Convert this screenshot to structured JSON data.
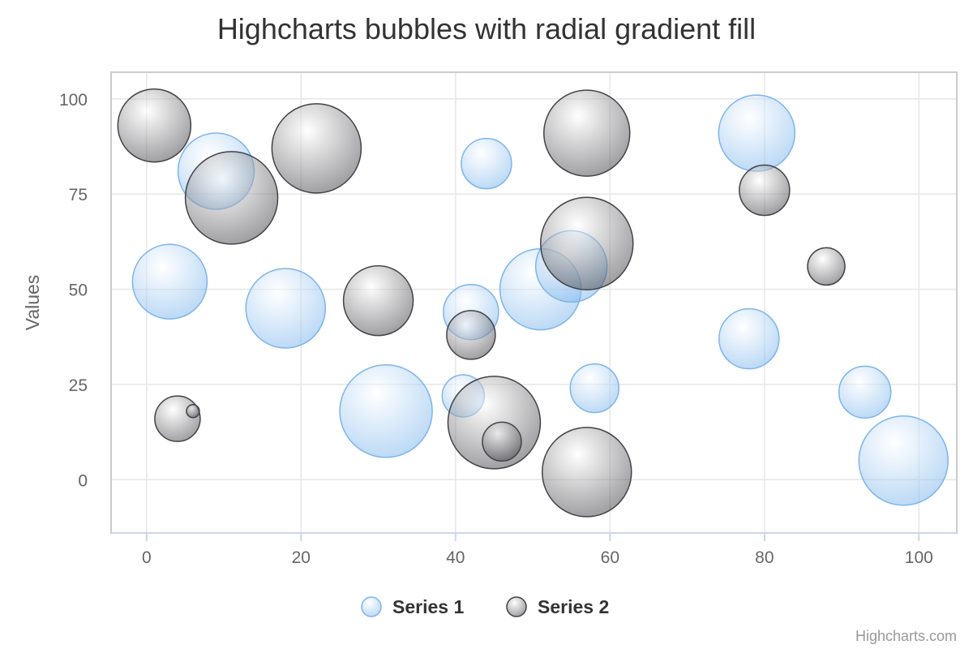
{
  "chart_data": {
    "type": "bubble",
    "title": "Highcharts bubbles with radial gradient fill",
    "ylabel": "Values",
    "xlabel": "",
    "xlim": [
      -4.6,
      104.9
    ],
    "ylim": [
      -14,
      107
    ],
    "xticks": [
      0,
      20,
      40,
      60,
      80,
      100
    ],
    "yticks": [
      0,
      25,
      50,
      75,
      100
    ],
    "grid": true,
    "legend_position": "bottom-center",
    "credits": "Highcharts.com",
    "series": [
      {
        "name": "Series 1",
        "color": "#7cb5ec",
        "points": [
          {
            "x": 9,
            "y": 81,
            "z": 47
          },
          {
            "x": 3,
            "y": 52,
            "z": 46
          },
          {
            "x": 18,
            "y": 45,
            "z": 49
          },
          {
            "x": 31,
            "y": 18,
            "z": 57
          },
          {
            "x": 41,
            "y": 22,
            "z": 26
          },
          {
            "x": 42,
            "y": 44,
            "z": 34
          },
          {
            "x": 44,
            "y": 83,
            "z": 31
          },
          {
            "x": 51,
            "y": 50,
            "z": 50
          },
          {
            "x": 55,
            "y": 56,
            "z": 44
          },
          {
            "x": 58,
            "y": 24,
            "z": 30
          },
          {
            "x": 78,
            "y": 37,
            "z": 37
          },
          {
            "x": 79,
            "y": 91,
            "z": 47
          },
          {
            "x": 93,
            "y": 23,
            "z": 32
          },
          {
            "x": 98,
            "y": 5,
            "z": 55
          }
        ]
      },
      {
        "name": "Series 2",
        "color": "#434348",
        "points": [
          {
            "x": 1,
            "y": 93,
            "z": 45
          },
          {
            "x": 11,
            "y": 74,
            "z": 57
          },
          {
            "x": 22,
            "y": 87,
            "z": 55
          },
          {
            "x": 4,
            "y": 16,
            "z": 28
          },
          {
            "x": 6,
            "y": 18,
            "z": 8
          },
          {
            "x": 30,
            "y": 47,
            "z": 43
          },
          {
            "x": 42,
            "y": 38,
            "z": 30
          },
          {
            "x": 45,
            "y": 15,
            "z": 57
          },
          {
            "x": 46,
            "y": 10,
            "z": 24
          },
          {
            "x": 57,
            "y": 91,
            "z": 53
          },
          {
            "x": 57,
            "y": 62,
            "z": 57
          },
          {
            "x": 57,
            "y": 2,
            "z": 55
          },
          {
            "x": 80,
            "y": 76,
            "z": 31
          },
          {
            "x": 88,
            "y": 56,
            "z": 23
          }
        ]
      }
    ]
  }
}
